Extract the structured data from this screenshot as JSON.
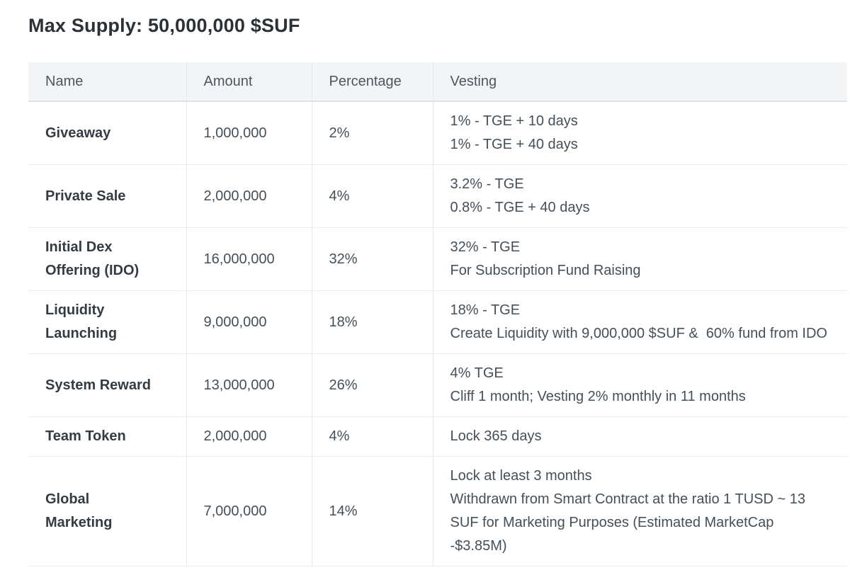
{
  "page": {
    "title": "Max Supply: 50,000,000 $SUF"
  },
  "colors": {
    "header_background": "#f3f4f6",
    "header_border": "#dde2e7",
    "row_border": "#eaedf0",
    "column_border": "#e6eaee",
    "title_text": "#2b3137",
    "name_text": "#333b43",
    "cell_text": "#454f58",
    "header_text": "#4d565e"
  },
  "table": {
    "columns": [
      "Name",
      "Amount",
      "Percentage",
      "Vesting"
    ],
    "rows": [
      {
        "name": "Giveaway",
        "amount": "1,000,000",
        "percentage": "2%",
        "vesting": [
          "1% - TGE + 10 days",
          "1% - TGE + 40 days"
        ]
      },
      {
        "name": "Private Sale",
        "amount": "2,000,000",
        "percentage": "4%",
        "vesting": [
          "3.2% - TGE",
          "0.8% - TGE + 40 days"
        ]
      },
      {
        "name": "Initial Dex Offering (IDO)",
        "amount": "16,000,000",
        "percentage": "32%",
        "vesting": [
          "32% - TGE",
          "For Subscription Fund Raising"
        ]
      },
      {
        "name": "Liquidity Launching",
        "amount": "9,000,000",
        "percentage": "18%",
        "vesting": [
          "18% - TGE",
          "Create Liquidity with 9,000,000 $SUF &  60% fund from IDO"
        ]
      },
      {
        "name": "System Reward",
        "amount": "13,000,000",
        "percentage": "26%",
        "vesting": [
          "4% TGE",
          "Cliff 1 month; Vesting 2% monthly in 11 months"
        ]
      },
      {
        "name": "Team Token",
        "amount": "2,000,000",
        "percentage": "4%",
        "vesting": [
          "Lock 365 days"
        ]
      },
      {
        "name": "Global Marketing",
        "amount": "7,000,000",
        "percentage": "14%",
        "vesting": [
          "Lock at least 3 months",
          "Withdrawn from Smart Contract at the ratio 1 TUSD ~ 13 SUF for Marketing Purposes (Estimated MarketCap -$3.85M)"
        ]
      }
    ]
  }
}
